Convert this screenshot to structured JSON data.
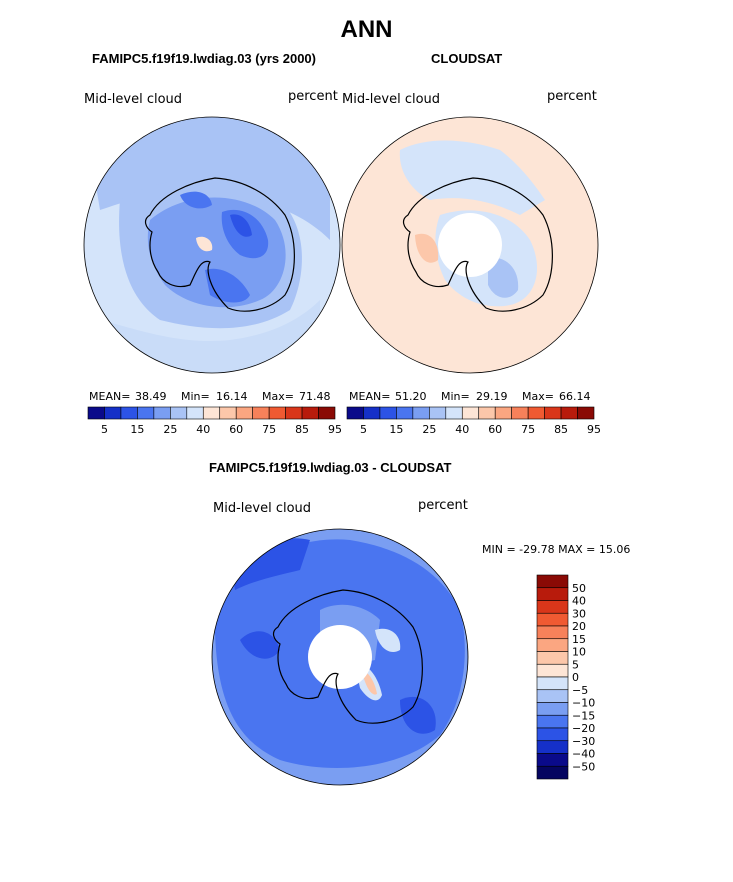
{
  "page_title": "ANN",
  "chart_data": [
    {
      "type": "heatmap",
      "projection": "south-polar-stereographic",
      "title": "FAMIPC5.f19f19.lwdiag.03 (yrs 2000)",
      "field_label": "Mid-level cloud",
      "units": "percent",
      "stats": {
        "mean_label": "MEAN=",
        "mean": "38.49",
        "min_label": "Min=",
        "min": "16.14",
        "max_label": "Max=",
        "max": "71.48"
      },
      "colorbar_levels": [
        "5",
        "15",
        "25",
        "40",
        "60",
        "75",
        "85",
        "95"
      ],
      "colorbar_colors": [
        "#0a0a8a",
        "#1530c8",
        "#2c53e6",
        "#4a75f0",
        "#7a9ef2",
        "#a9c3f5",
        "#d4e4fa",
        "#fde5d6",
        "#fcc7aa",
        "#fba681",
        "#f7815a",
        "#f05a32",
        "#d9361a",
        "#b81b0c",
        "#8a0a05"
      ],
      "has_missing_pole": false
    },
    {
      "type": "heatmap",
      "projection": "south-polar-stereographic",
      "title": "CLOUDSAT",
      "field_label": "Mid-level cloud",
      "units": "percent",
      "stats": {
        "mean_label": "MEAN=",
        "mean": "51.20",
        "min_label": "Min=",
        "min": "29.19",
        "max_label": "Max=",
        "max": "66.14"
      },
      "colorbar_levels": [
        "5",
        "15",
        "25",
        "40",
        "60",
        "75",
        "85",
        "95"
      ],
      "colorbar_colors": [
        "#0a0a8a",
        "#1530c8",
        "#2c53e6",
        "#4a75f0",
        "#7a9ef2",
        "#a9c3f5",
        "#d4e4fa",
        "#fde5d6",
        "#fcc7aa",
        "#fba681",
        "#f7815a",
        "#f05a32",
        "#d9361a",
        "#b81b0c",
        "#8a0a05"
      ],
      "has_missing_pole": true
    },
    {
      "type": "heatmap",
      "projection": "south-polar-stereographic",
      "title": "FAMIPC5.f19f19.lwdiag.03 - CLOUDSAT",
      "field_label": "Mid-level cloud",
      "units": "percent",
      "range_text": "MIN = -29.78 MAX =  15.06",
      "stats": {
        "min": -29.78,
        "max": 15.06
      },
      "colorbar_levels": [
        "50",
        "40",
        "30",
        "20",
        "15",
        "10",
        "5",
        "0",
        "−5",
        "−10",
        "−15",
        "−20",
        "−30",
        "−40",
        "−50"
      ],
      "colorbar_colors": [
        "#8a0a05",
        "#b81b0c",
        "#d9361a",
        "#f05a32",
        "#f7815a",
        "#fba681",
        "#fcc7aa",
        "#fde5d6",
        "#d4e4fa",
        "#a9c3f5",
        "#7a9ef2",
        "#4a75f0",
        "#2c53e6",
        "#1530c8",
        "#0a0a8a",
        "#050560"
      ],
      "has_missing_pole": true
    }
  ]
}
